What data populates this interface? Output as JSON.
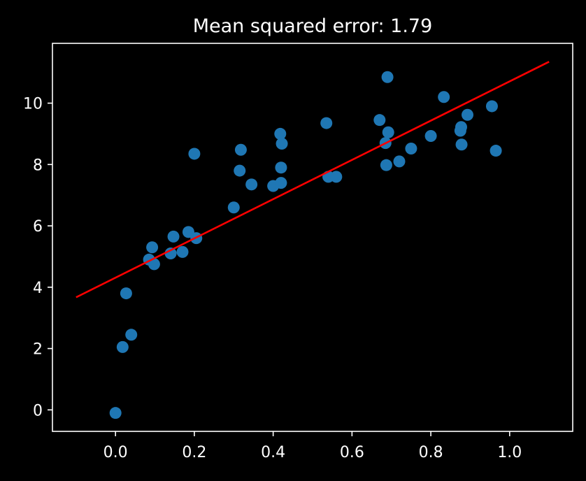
{
  "chart_data": {
    "type": "scatter",
    "title": "Mean squared error: 1.79",
    "xlabel": "",
    "ylabel": "",
    "xlim": [
      -0.16,
      1.16
    ],
    "ylim": [
      -0.7,
      11.95
    ],
    "xticks": [
      0.0,
      0.2,
      0.4,
      0.6,
      0.8,
      1.0
    ],
    "xtick_labels": [
      "0.0",
      "0.2",
      "0.4",
      "0.6",
      "0.8",
      "1.0"
    ],
    "yticks": [
      0,
      2,
      4,
      6,
      8,
      10
    ],
    "ytick_labels": [
      "0",
      "2",
      "4",
      "6",
      "8",
      "10"
    ],
    "grid": false,
    "legend": "none",
    "colors": {
      "background": "#000000",
      "axes": "#ffffff",
      "points": "#1f77b4",
      "fit_line": "#ff0000"
    },
    "points": {
      "x": [
        0.0,
        0.018,
        0.027,
        0.04,
        0.085,
        0.093,
        0.098,
        0.14,
        0.147,
        0.17,
        0.185,
        0.2,
        0.205,
        0.3,
        0.315,
        0.318,
        0.345,
        0.4,
        0.418,
        0.42,
        0.422,
        0.42,
        0.535,
        0.54,
        0.56,
        0.67,
        0.685,
        0.687,
        0.69,
        0.692,
        0.72,
        0.75,
        0.8,
        0.833,
        0.875,
        0.877,
        0.878,
        0.893,
        0.955,
        0.965
      ],
      "y": [
        -0.1,
        2.05,
        3.8,
        2.45,
        4.9,
        5.3,
        4.75,
        5.1,
        5.65,
        5.15,
        5.8,
        8.35,
        5.6,
        6.6,
        7.8,
        8.48,
        7.35,
        7.3,
        9.0,
        7.9,
        8.68,
        7.4,
        9.35,
        7.6,
        7.6,
        9.45,
        8.7,
        7.98,
        10.85,
        9.05,
        8.1,
        8.52,
        8.93,
        10.2,
        9.1,
        9.22,
        8.65,
        9.62,
        9.9,
        8.45
      ]
    },
    "fit_line": {
      "x": [
        -0.1,
        1.1
      ],
      "y": [
        3.67,
        11.35
      ]
    }
  }
}
